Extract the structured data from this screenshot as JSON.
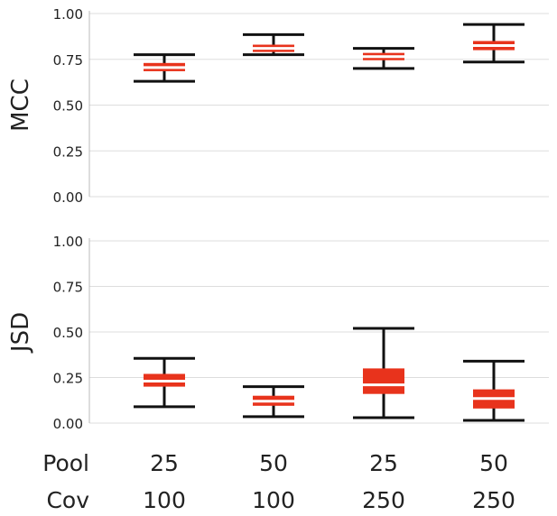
{
  "chart_data": [
    {
      "type": "box",
      "ylabel": "MCC",
      "ylim": [
        0,
        1
      ],
      "yticks": [
        "0.00",
        "0.25",
        "0.50",
        "0.75",
        "1.00"
      ],
      "grid": true,
      "boxes": [
        {
          "whisker_low": 0.63,
          "q1": 0.685,
          "median": 0.705,
          "q3": 0.73,
          "whisker_high": 0.775
        },
        {
          "whisker_low": 0.775,
          "q1": 0.79,
          "median": 0.81,
          "q3": 0.83,
          "whisker_high": 0.885
        },
        {
          "whisker_low": 0.7,
          "q1": 0.745,
          "median": 0.765,
          "q3": 0.785,
          "whisker_high": 0.81
        },
        {
          "whisker_low": 0.735,
          "q1": 0.8,
          "median": 0.825,
          "q3": 0.85,
          "whisker_high": 0.94
        }
      ]
    },
    {
      "type": "box",
      "ylabel": "JSD",
      "ylim": [
        0,
        1
      ],
      "yticks": [
        "0.00",
        "0.25",
        "0.50",
        "0.75",
        "1.00"
      ],
      "grid": true,
      "boxes": [
        {
          "whisker_low": 0.09,
          "q1": 0.2,
          "median": 0.23,
          "q3": 0.27,
          "whisker_high": 0.355
        },
        {
          "whisker_low": 0.035,
          "q1": 0.095,
          "median": 0.12,
          "q3": 0.15,
          "whisker_high": 0.2
        },
        {
          "whisker_low": 0.03,
          "q1": 0.16,
          "median": 0.21,
          "q3": 0.3,
          "whisker_high": 0.52
        },
        {
          "whisker_low": 0.015,
          "q1": 0.08,
          "median": 0.135,
          "q3": 0.185,
          "whisker_high": 0.34
        }
      ]
    }
  ],
  "x_rows": [
    {
      "label": "Pool",
      "values": [
        "25",
        "50",
        "25",
        "50"
      ]
    },
    {
      "label": "Cov",
      "values": [
        "100",
        "100",
        "250",
        "250"
      ]
    }
  ],
  "colors": {
    "box": "#e8331c",
    "whisker": "#111111",
    "grid": "#dddddd",
    "median": "#ffffff"
  }
}
